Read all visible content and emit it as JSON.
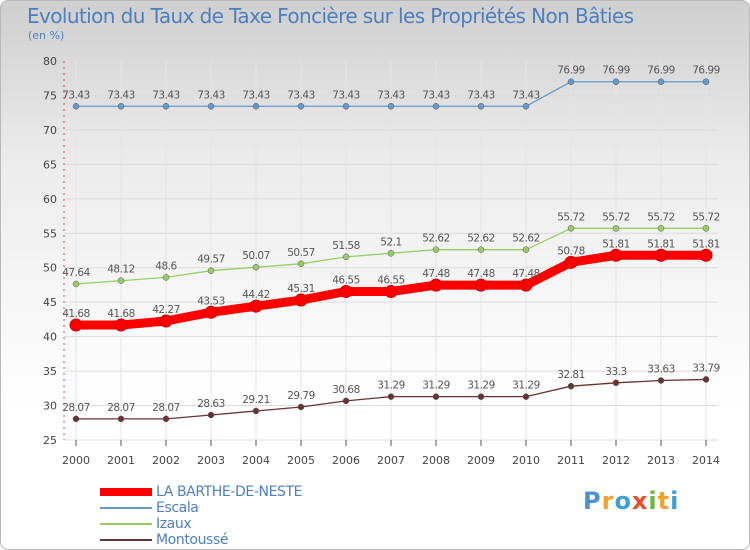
{
  "chart_data": {
    "type": "line",
    "title": "Evolution du Taux de Taxe Foncière sur les Propriétés Non Bâties",
    "subtitle": "(en %)",
    "xlabel": "",
    "ylabel": "(en %)",
    "ylim": [
      25,
      80
    ],
    "yticks": [
      25,
      30,
      35,
      40,
      45,
      50,
      55,
      60,
      65,
      70,
      75,
      80
    ],
    "grid": true,
    "categories": [
      "2000",
      "2001",
      "2002",
      "2003",
      "2004",
      "2005",
      "2006",
      "2007",
      "2008",
      "2009",
      "2010",
      "2011",
      "2012",
      "2013",
      "2014"
    ],
    "series": [
      {
        "name": "Escala",
        "color": "#6699cc",
        "values": [
          73.43,
          73.43,
          73.43,
          73.43,
          73.43,
          73.43,
          73.43,
          73.43,
          73.43,
          73.43,
          73.43,
          76.99,
          76.99,
          76.99,
          76.99
        ],
        "labels": [
          "73.43",
          "73.43",
          "73.43",
          "73.43",
          "73.43",
          "73.43",
          "73.43",
          "73.43",
          "73.43",
          "73.43",
          "73.43",
          "76.99",
          "76.99",
          "76.99",
          "76.99"
        ]
      },
      {
        "name": "Izaux",
        "color": "#99cc66",
        "values": [
          47.64,
          48.12,
          48.6,
          49.57,
          50.07,
          50.57,
          51.58,
          52.1,
          52.62,
          52.62,
          52.62,
          55.72,
          55.72,
          55.72,
          55.72
        ],
        "labels": [
          "47.64",
          "48.12",
          "48.6",
          "49.57",
          "50.07",
          "50.57",
          "51.58",
          "52.1",
          "52.62",
          "52.62",
          "52.62",
          "55.72",
          "55.72",
          "55.72",
          "55.72"
        ]
      },
      {
        "name": "LA BARTHE-DE-NESTE",
        "color": "#ff0000",
        "values": [
          41.68,
          41.68,
          42.27,
          43.53,
          44.42,
          45.31,
          46.55,
          46.55,
          47.48,
          47.48,
          47.48,
          50.78,
          51.81,
          51.81,
          51.81
        ],
        "labels": [
          "41.68",
          "41.68",
          "42.27",
          "43.53",
          "44.42",
          "45.31",
          "46.55",
          "46.55",
          "47.48",
          "47.48",
          "47.48",
          "50.78",
          "51.81",
          "51.81",
          "51.81"
        ]
      },
      {
        "name": "Montoussé",
        "color": "#663333",
        "values": [
          28.07,
          28.07,
          28.07,
          28.63,
          29.21,
          29.79,
          30.68,
          31.29,
          31.29,
          31.29,
          31.29,
          32.81,
          33.3,
          33.63,
          33.79
        ],
        "labels": [
          "28.07",
          "28.07",
          "28.07",
          "28.63",
          "29.21",
          "29.79",
          "30.68",
          "31.29",
          "31.29",
          "31.29",
          "31.29",
          "32.81",
          "33.3",
          "33.63",
          "33.79"
        ]
      }
    ],
    "legend": {
      "position": "bottom-left",
      "order": [
        "LA BARTHE-DE-NESTE",
        "Escala",
        "Izaux",
        "Montoussé"
      ]
    }
  },
  "logo": {
    "letters": [
      "P",
      "r",
      "o",
      "x",
      "i",
      "t",
      "i"
    ],
    "colors": [
      "#4e90d0",
      "#f4a02c",
      "#3aa0d8",
      "#e8502a",
      "#6cb83c",
      "#f4a02c",
      "#3aa0d8"
    ]
  }
}
